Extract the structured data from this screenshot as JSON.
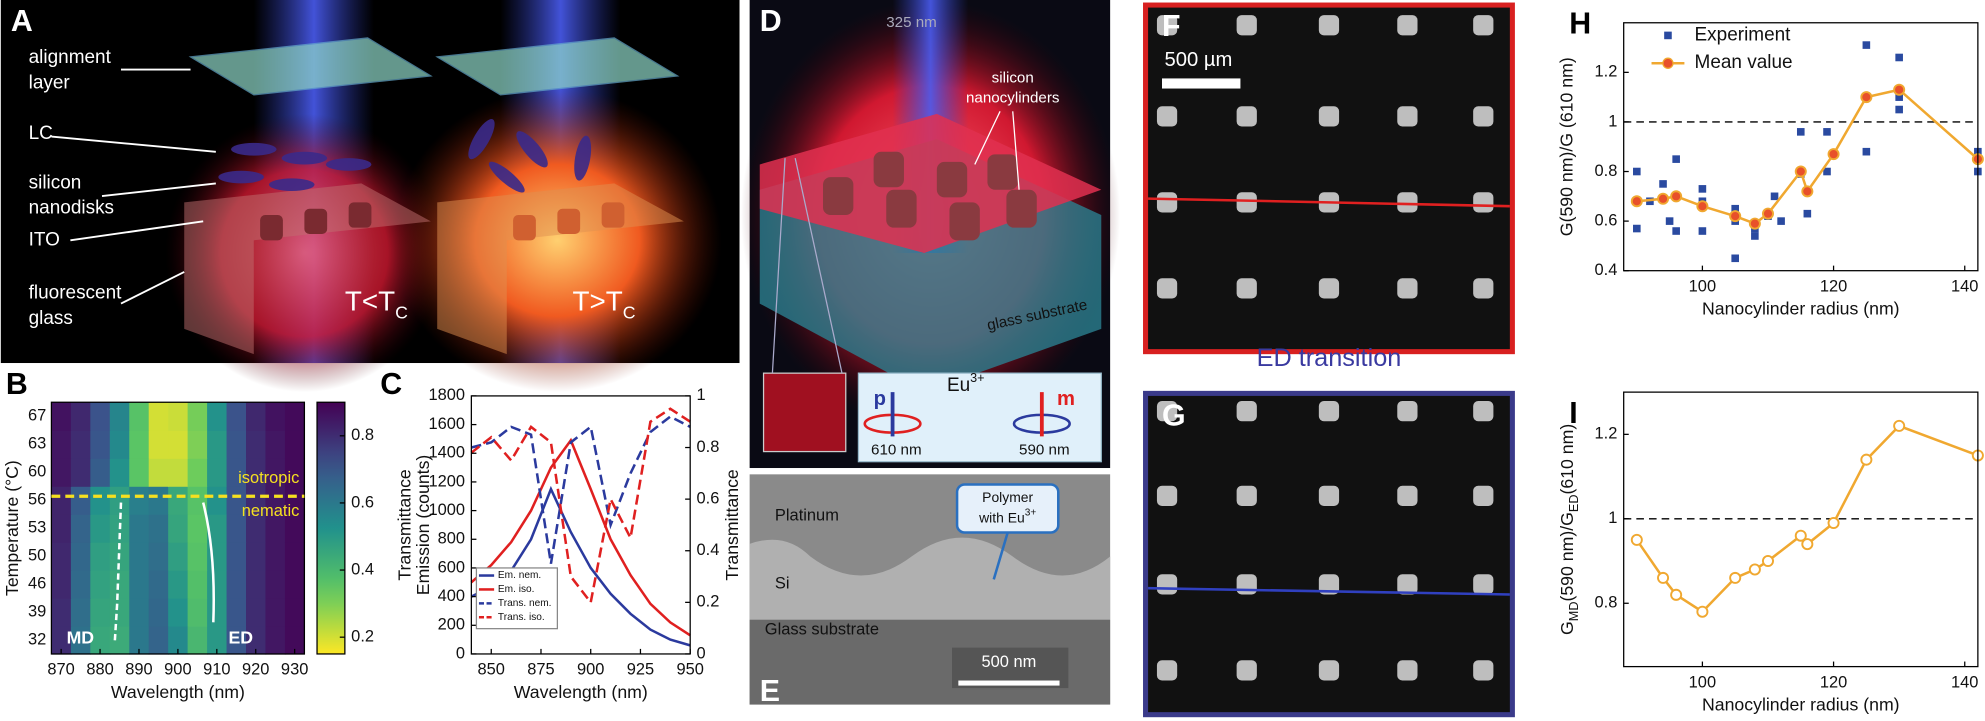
{
  "figure_labels": [
    "A",
    "B",
    "C",
    "D",
    "E",
    "F",
    "G",
    "H",
    "I"
  ],
  "panel_a": {
    "labels": [
      [
        "alignment",
        "layer"
      ],
      [
        "LC"
      ],
      [
        "silicon",
        "nanodisks"
      ],
      [
        "ITO"
      ],
      [
        "fluorescent",
        "glass"
      ]
    ],
    "states": [
      [
        "T<T",
        "C"
      ],
      [
        "T>T",
        "C"
      ]
    ]
  },
  "panel_d": {
    "wavelength": "325 nm",
    "cylinders": [
      "silicon",
      "nanocylinders"
    ],
    "substrate": "glass substrate",
    "ion": [
      "Eu",
      "3+"
    ],
    "p": "p",
    "m": "m",
    "p_wavelength": "610 nm",
    "m_wavelength": "590 nm"
  },
  "panel_e": {
    "platinum": "Platinum",
    "si": "Si",
    "polymer": [
      "Polymer",
      "with Eu",
      "3+"
    ],
    "glass": "Glass substrate",
    "scale": "500 nm"
  },
  "panel_f": {
    "scale": "500 µm"
  },
  "panel_g": {
    "title": "ED transition"
  },
  "chart_data": [
    {
      "type": "heatmap",
      "xlabel": "Wavelength (nm)",
      "ylabel": "Temperature (°C)",
      "x": [
        870,
        875,
        880,
        885,
        890,
        895,
        900,
        905,
        910,
        915,
        920,
        925,
        930
      ],
      "xlim": [
        867.5,
        932.5
      ],
      "xticks": [
        870,
        880,
        890,
        900,
        910,
        920,
        930
      ],
      "categories": [
        "32",
        "39",
        "46",
        "50",
        "53",
        "56",
        "60",
        "63",
        "67"
      ],
      "values": [
        [
          0.8,
          0.62,
          0.45,
          0.44,
          0.6,
          0.66,
          0.55,
          0.4,
          0.5,
          0.7,
          0.8,
          0.85,
          0.88
        ],
        [
          0.8,
          0.63,
          0.46,
          0.45,
          0.6,
          0.65,
          0.52,
          0.38,
          0.5,
          0.7,
          0.8,
          0.85,
          0.88
        ],
        [
          0.81,
          0.64,
          0.47,
          0.45,
          0.6,
          0.64,
          0.5,
          0.37,
          0.5,
          0.7,
          0.8,
          0.85,
          0.88
        ],
        [
          0.81,
          0.65,
          0.48,
          0.46,
          0.6,
          0.63,
          0.48,
          0.36,
          0.5,
          0.7,
          0.8,
          0.85,
          0.88
        ],
        [
          0.82,
          0.66,
          0.5,
          0.47,
          0.6,
          0.62,
          0.46,
          0.35,
          0.5,
          0.7,
          0.8,
          0.85,
          0.88
        ],
        [
          0.82,
          0.68,
          0.52,
          0.48,
          0.58,
          0.6,
          0.45,
          0.36,
          0.52,
          0.7,
          0.8,
          0.85,
          0.88
        ],
        [
          0.85,
          0.8,
          0.68,
          0.52,
          0.35,
          0.22,
          0.22,
          0.32,
          0.5,
          0.7,
          0.8,
          0.85,
          0.88
        ],
        [
          0.85,
          0.8,
          0.7,
          0.55,
          0.35,
          0.2,
          0.2,
          0.3,
          0.5,
          0.7,
          0.8,
          0.85,
          0.88
        ],
        [
          0.86,
          0.81,
          0.71,
          0.56,
          0.36,
          0.2,
          0.21,
          0.31,
          0.52,
          0.71,
          0.81,
          0.86,
          0.88
        ]
      ],
      "colorbar": {
        "lim": [
          0.15,
          0.9
        ],
        "ticks": [
          0.2,
          0.4,
          0.6,
          0.8
        ]
      },
      "annotations": {
        "isotropic": "isotropic",
        "nematic": "nematic",
        "md": "MD",
        "ed": "ED"
      }
    },
    {
      "type": "line",
      "xlabel": "Wavelength (nm)",
      "ylabel": [
        "Transmittance",
        "Emission (counts)"
      ],
      "y2label": "Transmittance",
      "x": [
        840,
        850,
        860,
        870,
        880,
        890,
        900,
        910,
        920,
        930,
        940,
        950
      ],
      "xlim": [
        840,
        950
      ],
      "xticks": [
        850,
        875,
        900,
        925,
        950
      ],
      "ylim": [
        0,
        1800
      ],
      "yticks": [
        0,
        200,
        400,
        600,
        800,
        1000,
        1200,
        1400,
        1600,
        1800
      ],
      "y2lim": [
        0,
        1
      ],
      "y2ticks": [
        0,
        0.2,
        0.4,
        0.6,
        0.8,
        1
      ],
      "series": [
        {
          "name": "Em. nem.",
          "color": "#2b3a9e",
          "style": "solid",
          "values": [
            400,
            470,
            580,
            800,
            1150,
            850,
            600,
            420,
            280,
            170,
            100,
            60
          ]
        },
        {
          "name": "Em. iso.",
          "color": "#e02020",
          "style": "solid",
          "values": [
            500,
            620,
            780,
            1000,
            1300,
            1490,
            1150,
            800,
            550,
            350,
            220,
            130
          ]
        },
        {
          "name": "Trans. nem.",
          "color": "#2b3a9e",
          "style": "dashed",
          "axis": "y2",
          "values": [
            0.8,
            0.82,
            0.88,
            0.85,
            0.35,
            0.82,
            0.88,
            0.5,
            0.7,
            0.86,
            0.92,
            0.88
          ]
        },
        {
          "name": "Trans. iso.",
          "color": "#e02020",
          "style": "dashed",
          "axis": "y2",
          "values": [
            0.78,
            0.84,
            0.75,
            0.88,
            0.82,
            0.3,
            0.2,
            0.6,
            0.45,
            0.9,
            0.95,
            0.9
          ]
        }
      ]
    },
    {
      "type": "line",
      "xlabel": "Nanocylinder radius (nm)",
      "ylabel": "G(590 nm)/G (610 nm)",
      "xlim": [
        88,
        142
      ],
      "xticks": [
        100,
        120,
        140
      ],
      "ylim": [
        0.4,
        1.4
      ],
      "yticks": [
        0.4,
        0.6,
        0.8,
        1,
        1.2
      ],
      "hline": 1,
      "series": [
        {
          "name": "Experiment",
          "kind": "scatter",
          "color": "#2a4aa0",
          "x": [
            90,
            90,
            92,
            94,
            95,
            96,
            96,
            100,
            100,
            100,
            105,
            105,
            105,
            108,
            108,
            110,
            111,
            112,
            115,
            115,
            116,
            119,
            119,
            125,
            125,
            130,
            130,
            130,
            142,
            142
          ],
          "values": [
            0.57,
            0.8,
            0.68,
            0.75,
            0.6,
            0.85,
            0.56,
            0.73,
            0.68,
            0.56,
            0.65,
            0.45,
            0.6,
            0.57,
            0.54,
            0.62,
            0.7,
            0.6,
            0.96,
            0.79,
            0.63,
            0.96,
            0.8,
            1.31,
            0.88,
            1.26,
            1.1,
            1.05,
            0.88,
            0.8
          ]
        },
        {
          "name": "Mean value",
          "kind": "line",
          "color": "#f0a830",
          "marker_color": "#e8502a",
          "x": [
            90,
            94,
            96,
            100,
            105,
            108,
            110,
            115,
            116,
            120,
            125,
            130,
            142
          ],
          "values": [
            0.68,
            0.69,
            0.7,
            0.66,
            0.62,
            0.59,
            0.63,
            0.8,
            0.72,
            0.87,
            1.1,
            1.13,
            0.85
          ]
        }
      ]
    },
    {
      "type": "line",
      "xlabel": "Nanocylinder radius (nm)",
      "ylabel": [
        "G",
        "MD",
        "(590 nm)/G",
        "ED",
        "(610 nm)"
      ],
      "xlim": [
        88,
        142
      ],
      "xticks": [
        100,
        120,
        140
      ],
      "ylim": [
        0.65,
        1.3
      ],
      "yticks": [
        0.8,
        1,
        1.2
      ],
      "hline": 1,
      "color": "#f0a830",
      "x": [
        90,
        94,
        96,
        100,
        105,
        108,
        110,
        115,
        116,
        120,
        125,
        130,
        142
      ],
      "values": [
        0.95,
        0.86,
        0.82,
        0.78,
        0.86,
        0.88,
        0.9,
        0.96,
        0.94,
        0.99,
        1.14,
        1.22,
        1.15
      ]
    }
  ]
}
